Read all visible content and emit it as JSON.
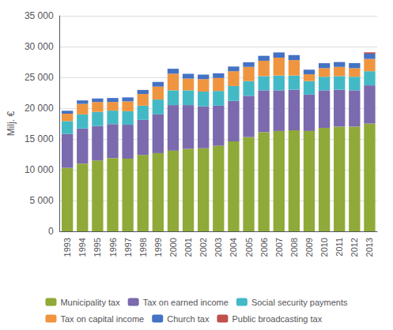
{
  "chart_data": {
    "type": "bar",
    "stacked": true,
    "ylabel": "Milj. €",
    "categories": [
      "1993",
      "1994",
      "1995",
      "1996",
      "1997",
      "1998",
      "1999",
      "2000",
      "2001",
      "2002",
      "2003",
      "2004",
      "2005",
      "2006",
      "2007",
      "2008",
      "2009",
      "2010",
      "2011",
      "2012",
      "2013"
    ],
    "series": [
      {
        "name": "Municipality tax",
        "color": "#8faa38",
        "values": [
          10300,
          11000,
          11500,
          11900,
          11800,
          12400,
          12700,
          13100,
          13400,
          13500,
          13900,
          14600,
          15300,
          16100,
          16300,
          16400,
          16300,
          16800,
          17000,
          17000,
          17500
        ]
      },
      {
        "name": "Tax on earned income",
        "color": "#7b6aad",
        "values": [
          5500,
          5700,
          5600,
          5500,
          5500,
          5700,
          6300,
          7400,
          7100,
          6800,
          6500,
          6600,
          6700,
          6800,
          6600,
          6600,
          5900,
          6100,
          6000,
          5900,
          6200
        ]
      },
      {
        "name": "Social security payments",
        "color": "#44b9c6",
        "values": [
          2100,
          2300,
          2300,
          2200,
          2200,
          2300,
          2400,
          2400,
          2400,
          2400,
          2400,
          2400,
          2400,
          2300,
          2400,
          2300,
          2200,
          2200,
          2200,
          2200,
          2300
        ]
      },
      {
        "name": "Tax on capital income",
        "color": "#f0953f",
        "values": [
          1200,
          1700,
          1600,
          1400,
          1600,
          1900,
          2100,
          2700,
          1900,
          2000,
          2100,
          2400,
          2300,
          2500,
          2900,
          2500,
          1100,
          1400,
          1500,
          1400,
          2000
        ]
      },
      {
        "name": "Church tax",
        "color": "#4472c4",
        "values": [
          480,
          560,
          570,
          650,
          650,
          660,
          760,
          800,
          780,
          760,
          760,
          760,
          760,
          800,
          850,
          820,
          750,
          800,
          790,
          820,
          850
        ]
      },
      {
        "name": "Public broadcasting tax",
        "color": "#c0504d",
        "values": [
          0,
          0,
          0,
          0,
          0,
          0,
          0,
          0,
          0,
          0,
          0,
          0,
          0,
          0,
          0,
          0,
          0,
          0,
          0,
          0,
          220
        ]
      }
    ],
    "ylim": [
      0,
      35000
    ],
    "yticks": [
      0,
      {
        "value": 5000,
        "label": "5 000"
      },
      {
        "value": 10000,
        "label": "10 000"
      },
      {
        "value": 15000,
        "label": "15 000"
      },
      {
        "value": 20000,
        "label": "20 000"
      },
      {
        "value": 25000,
        "label": "25 000"
      },
      {
        "value": 30000,
        "label": "30 000"
      },
      {
        "value": 35000,
        "label": "35 000"
      }
    ],
    "grid": true,
    "legend": "bottom"
  }
}
